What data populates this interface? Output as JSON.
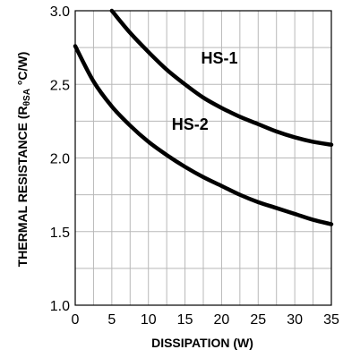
{
  "chart_data": {
    "type": "line",
    "xlabel": "DISSIPATION (W)",
    "ylabel": "THERMAL RESISTANCE (R",
    "ylabel_sub": "θSA",
    "ylabel_unit": " °C/W)",
    "xlim": [
      0,
      35
    ],
    "ylim": [
      1.0,
      3.0
    ],
    "xticks": [
      0,
      5,
      10,
      15,
      20,
      25,
      30,
      35
    ],
    "xtick_labels": [
      "0",
      "5",
      "10",
      "15",
      "20",
      "25",
      "30",
      "35"
    ],
    "yticks": [
      1.0,
      1.5,
      2.0,
      2.5,
      3.0
    ],
    "ytick_labels": [
      "1.0",
      "1.5",
      "2.0",
      "2.5",
      "3.0"
    ],
    "grid": true,
    "series": [
      {
        "name": "HS-1",
        "x": [
          5,
          7.5,
          10,
          12.5,
          15,
          17.5,
          20,
          22.5,
          25,
          27.5,
          30,
          32.5,
          35
        ],
        "y": [
          3.0,
          2.85,
          2.72,
          2.6,
          2.5,
          2.41,
          2.34,
          2.28,
          2.23,
          2.18,
          2.14,
          2.11,
          2.09
        ]
      },
      {
        "name": "HS-2",
        "x": [
          0,
          2.5,
          5,
          7.5,
          10,
          12.5,
          15,
          17.5,
          20,
          22.5,
          25,
          27.5,
          30,
          32.5,
          35
        ],
        "y": [
          2.76,
          2.52,
          2.35,
          2.22,
          2.11,
          2.02,
          1.94,
          1.87,
          1.81,
          1.75,
          1.7,
          1.66,
          1.62,
          1.58,
          1.55
        ]
      }
    ]
  }
}
